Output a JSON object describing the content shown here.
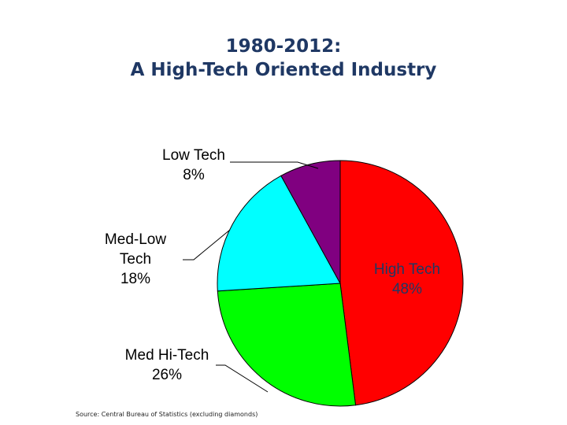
{
  "title": {
    "line1": "1980-2012:",
    "line2": "A High-Tech Oriented Industry"
  },
  "source": "Source: Central Bureau of Statistics (excluding diamonds)",
  "chart_data": {
    "type": "pie",
    "slices": [
      {
        "label_lines": [
          "High Tech"
        ],
        "pct_label": "48%",
        "value": 48,
        "color": "#ff0000",
        "label_color": "#1f3864"
      },
      {
        "label_lines": [
          "Med Hi-Tech"
        ],
        "pct_label": "26%",
        "value": 26,
        "color": "#00ff00",
        "label_color": "#000000"
      },
      {
        "label_lines": [
          "Med-Low",
          "Tech"
        ],
        "pct_label": "18%",
        "value": 18,
        "color": "#00ffff",
        "label_color": "#000000"
      },
      {
        "label_lines": [
          "Low Tech"
        ],
        "pct_label": "8%",
        "value": 8,
        "color": "#800080",
        "label_color": "#000000"
      }
    ]
  }
}
